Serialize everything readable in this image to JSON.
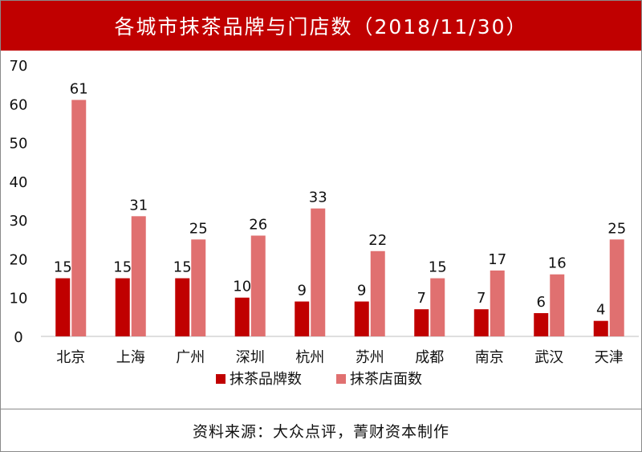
{
  "title": "各城市抹茶品牌与门店数（2018/11/30）",
  "source": "资料来源：大众点评，菁财资本制作",
  "colors": {
    "title_bg": "#c00000",
    "series1": "#c00000",
    "series2": "#e07070"
  },
  "chart_data": {
    "type": "bar",
    "title": "各城市抹茶品牌与门店数（2018/11/30）",
    "categories": [
      "北京",
      "上海",
      "广州",
      "深圳",
      "杭州",
      "苏州",
      "成都",
      "南京",
      "武汉",
      "天津"
    ],
    "series": [
      {
        "name": "抹茶品牌数",
        "values": [
          15,
          15,
          15,
          10,
          9,
          9,
          7,
          7,
          6,
          4
        ]
      },
      {
        "name": "抹茶店面数",
        "values": [
          61,
          31,
          25,
          26,
          33,
          22,
          15,
          17,
          16,
          25
        ]
      }
    ],
    "ylim": [
      0,
      70
    ],
    "yticks": [
      0,
      10,
      20,
      30,
      40,
      50,
      60,
      70
    ],
    "xlabel": "",
    "ylabel": "",
    "grid": false,
    "legend": "bottom-center",
    "data_labels": true
  }
}
